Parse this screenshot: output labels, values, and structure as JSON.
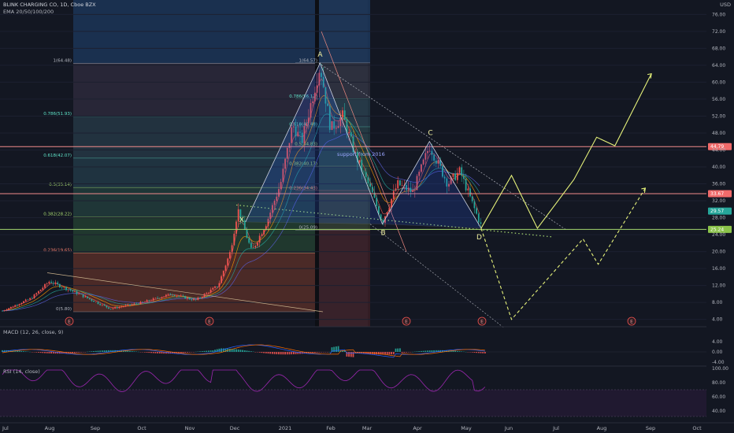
{
  "header": {
    "symbol_line": "BLINK CHARGING CO, 1D, Cboe BZX",
    "indicator": "EMA 20/50/100/200",
    "currency": "USD"
  },
  "macd": {
    "label": "MACD (12, 26, close, 9)",
    "ticks": [
      "4.00",
      "0.00",
      "-4.00"
    ]
  },
  "rsi": {
    "label": "RSI (14, close)",
    "ticks": [
      "100.00",
      "80.00",
      "60.00",
      "40.00"
    ]
  },
  "colors": {
    "background": "#131722",
    "up": "#ef5350",
    "down": "#26a69a",
    "resistance": "#f28b8b",
    "support": "#a5d66f",
    "projection": "#e6f27a",
    "rsi": "#9c27b0"
  },
  "chart_data": {
    "type": "line",
    "y_axis_ticks": [
      76,
      72,
      68,
      64,
      60,
      56,
      52,
      48,
      44,
      40,
      36,
      32,
      28,
      24,
      20,
      16,
      12,
      8,
      4
    ],
    "ylim": [
      2,
      80
    ],
    "x_ticks": [
      "Jul",
      "Aug",
      "Sep",
      "Oct",
      "Nov",
      "Dec",
      "2021",
      "Feb",
      "Mar",
      "Apr",
      "May",
      "Jun",
      "Jul",
      "Aug",
      "Sep",
      "Oct"
    ],
    "horizontal_levels": [
      {
        "price": 44.79,
        "label": "44.79",
        "kind": "resistance"
      },
      {
        "price": 33.67,
        "label": "33.67",
        "kind": "resistance"
      },
      {
        "price": 25.24,
        "label": "25.24",
        "kind": "support"
      }
    ],
    "last_price": {
      "price": 29.57,
      "label": "29.57"
    },
    "fib_left": [
      {
        "label": "1(64.48)",
        "price": 64.48
      },
      {
        "label": "0.786(51.93)",
        "price": 51.93
      },
      {
        "label": "0.618(42.07)",
        "price": 42.07
      },
      {
        "label": "0.5(35.14)",
        "price": 35.14
      },
      {
        "label": "0.382(28.22)",
        "price": 28.22
      },
      {
        "label": "0.236(19.65)",
        "price": 19.65
      },
      {
        "label": "0(5.80)",
        "price": 5.8
      }
    ],
    "fib_right": [
      {
        "label": "1(64.57)",
        "price": 64.57
      },
      {
        "label": "0.786(56.12)",
        "price": 56.12
      },
      {
        "label": "0.618(49.48)",
        "price": 49.48
      },
      {
        "label": "0.5(44.83)",
        "price": 44.83
      },
      {
        "label": "0.382(40.17)",
        "price": 40.17
      },
      {
        "label": "0.236(34.43)",
        "price": 34.43
      },
      {
        "label": "0(25.09)",
        "price": 25.09
      }
    ],
    "pattern_points": [
      {
        "label": "X",
        "date": "2020-12-08",
        "price": 27
      },
      {
        "label": "A",
        "date": "2021-01-26",
        "price": 64.5
      },
      {
        "label": "B",
        "date": "2021-03-08",
        "price": 26.5
      },
      {
        "label": "C",
        "date": "2021-04-08",
        "price": 46
      },
      {
        "label": "D",
        "date": "2021-05-12",
        "price": 25.5
      }
    ],
    "annotation": "support from 2016",
    "event_markers": [
      "E",
      "E",
      "E",
      "E",
      "E"
    ],
    "solid_projection": [
      {
        "date": "2021-05-12",
        "price": 25.5
      },
      {
        "date": "2021-06-01",
        "price": 38
      },
      {
        "date": "2021-06-18",
        "price": 25.5
      },
      {
        "date": "2021-07-12",
        "price": 37
      },
      {
        "date": "2021-07-27",
        "price": 47
      },
      {
        "date": "2021-08-08",
        "price": 45
      },
      {
        "date": "2021-09-01",
        "price": 62
      }
    ],
    "dashed_projection": [
      {
        "date": "2021-05-12",
        "price": 25.5
      },
      {
        "date": "2021-06-01",
        "price": 4
      },
      {
        "date": "2021-07-18",
        "price": 23
      },
      {
        "date": "2021-07-28",
        "price": 17
      },
      {
        "date": "2021-08-28",
        "price": 35
      }
    ]
  }
}
